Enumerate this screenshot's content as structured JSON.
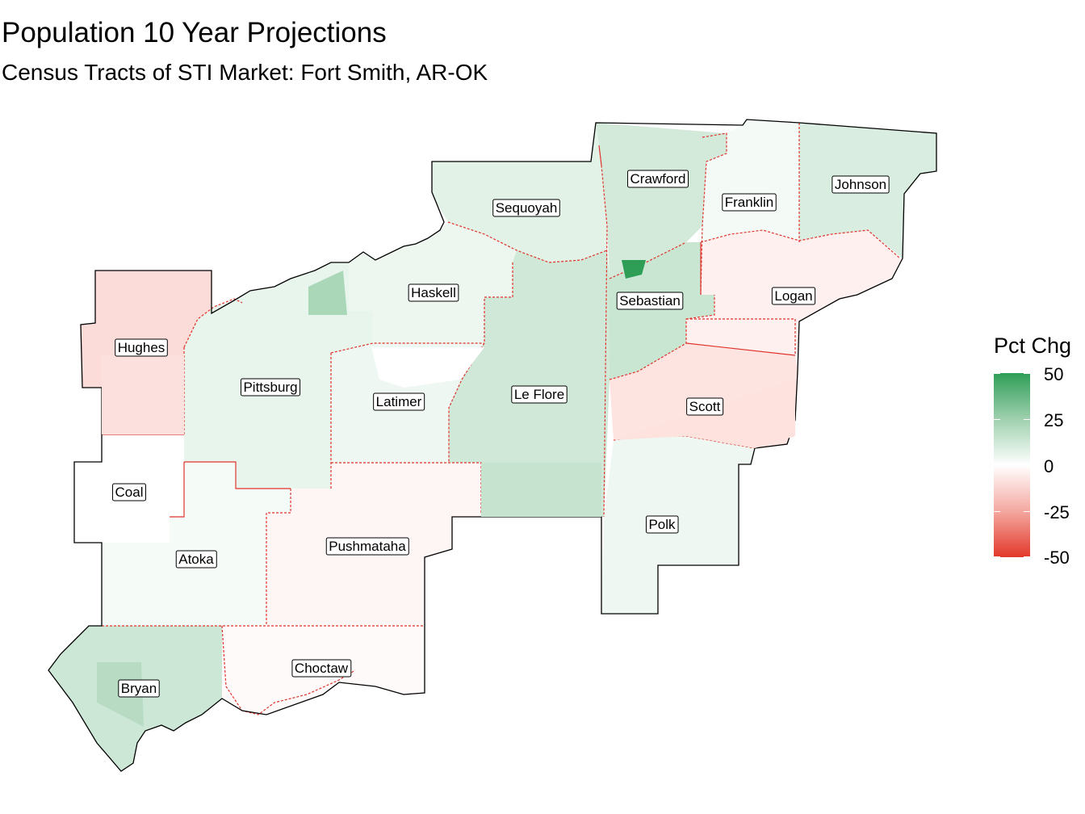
{
  "title": "Population 10 Year Projections",
  "subtitle": "Census Tracts of STI Market: Fort Smith, AR-OK",
  "legend": {
    "title": "Pct Chg",
    "ticks": [
      "50",
      "25",
      "0",
      "-25",
      "-50"
    ],
    "colors": {
      "high": "#2e9e57",
      "mid": "#ffffff",
      "low": "#e2382a"
    }
  },
  "counties": [
    {
      "name": "Crawford",
      "fill": "#d3eadb"
    },
    {
      "name": "Franklin",
      "fill": "#f4faf6"
    },
    {
      "name": "Johnson",
      "fill": "#d9eee0"
    },
    {
      "name": "Sequoyah",
      "fill": "#e2f2e7"
    },
    {
      "name": "Haskell",
      "fill": "#edf7f0"
    },
    {
      "name": "Sebastian",
      "fill": "#c9e6d2"
    },
    {
      "name": "Logan",
      "fill": "#fdf0ef"
    },
    {
      "name": "Hughes",
      "fill": "#fbdcd9"
    },
    {
      "name": "Pittsburg",
      "fill": "#e8f5ec"
    },
    {
      "name": "Latimer",
      "fill": "#eef7f1"
    },
    {
      "name": "Le Flore",
      "fill": "#cfe8d7"
    },
    {
      "name": "Scott",
      "fill": "#fde4e1"
    },
    {
      "name": "Coal",
      "fill": "#ffffff"
    },
    {
      "name": "Atoka",
      "fill": "#f5fbf7"
    },
    {
      "name": "Pushmataha",
      "fill": "#fdf6f5"
    },
    {
      "name": "Polk",
      "fill": "#eef7f1"
    },
    {
      "name": "Choctaw",
      "fill": "#fefafa"
    },
    {
      "name": "Bryan",
      "fill": "#cce7d5"
    }
  ]
}
